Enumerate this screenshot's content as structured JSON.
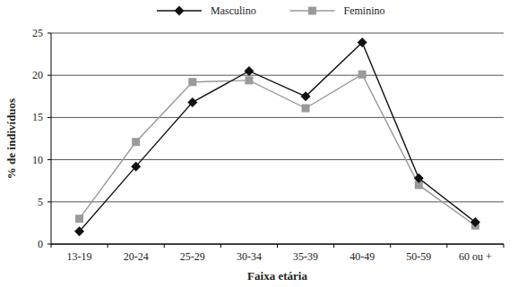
{
  "chart_data": {
    "type": "line",
    "x_label": "Faixa etária",
    "y_label": "% de indivíduos",
    "categories": [
      "13-19",
      "20-24",
      "25-29",
      "30-34",
      "35-39",
      "40-49",
      "50-59",
      "60 ou +"
    ],
    "series": [
      {
        "name": "Masculino",
        "color": "#111111",
        "marker": "diamond",
        "line_style": "solid",
        "values": [
          1.5,
          9.2,
          16.8,
          20.5,
          17.5,
          23.9,
          7.8,
          2.6
        ]
      },
      {
        "name": "Feminino",
        "color": "#9a9a9a",
        "marker": "square",
        "line_style": "solid",
        "values": [
          3.0,
          12.1,
          19.2,
          19.4,
          16.1,
          20.1,
          7.0,
          2.2
        ]
      }
    ],
    "ylim": [
      0,
      25
    ],
    "yticks": [
      0,
      5,
      10,
      15,
      20,
      25
    ],
    "grid": true,
    "legend": "top"
  }
}
